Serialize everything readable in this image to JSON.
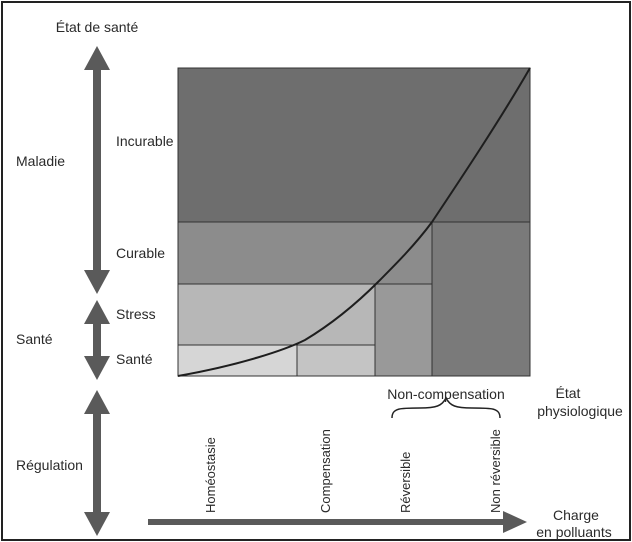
{
  "title": "État de santé",
  "left_labels": {
    "maladie": "Maladie",
    "sante": "Santé",
    "regulation": "Régulation"
  },
  "levels": {
    "incurable": "Incurable",
    "curable": "Curable",
    "stress": "Stress",
    "sante": "Santé"
  },
  "non_compensation": "Non-compensation",
  "etat_physiologique": [
    "État",
    "physiologique"
  ],
  "stages": {
    "homeostasie": "Homéostasie",
    "compensation": "Compensation",
    "reversible": "Réversible",
    "non_reversible": "Non réversible"
  },
  "x_axis_label": [
    "Charge",
    "en polluants"
  ],
  "colors": {
    "outer": "#6e6e6e",
    "incurable": "#6e6e6e",
    "curable": "#8c8c8c",
    "stress": "#b7b7b7",
    "sante": "#d6d6d6",
    "non_reversible_col": "#7a7a7a",
    "reversible_col": "#999999",
    "arrow": "#5a5a5a",
    "frame": "#222222"
  }
}
